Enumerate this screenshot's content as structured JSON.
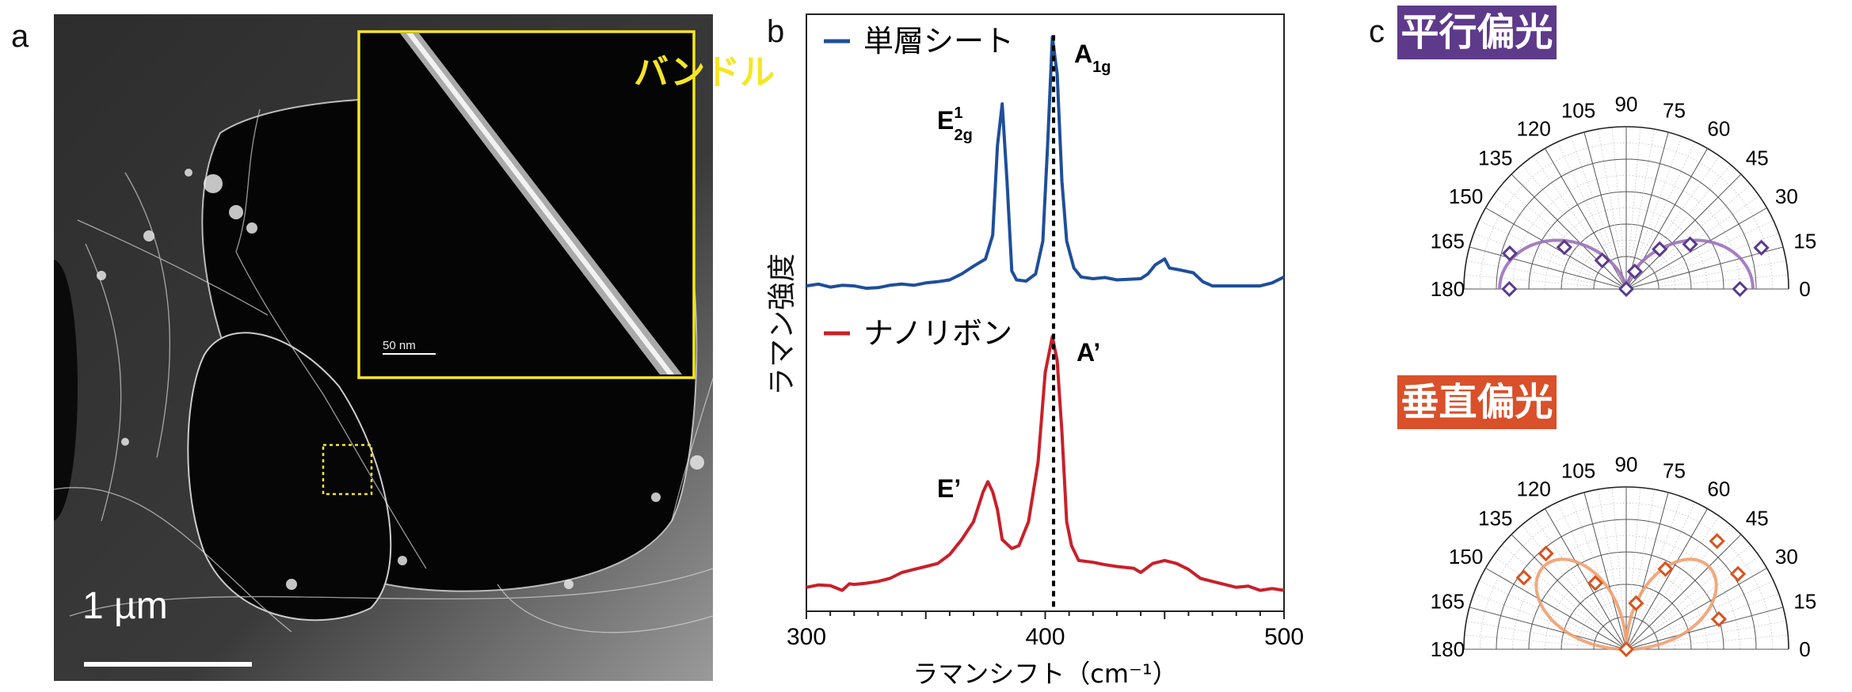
{
  "panel_a": {
    "label": "a",
    "scale_bar": "1 µm",
    "inset_label": "バンドル",
    "inset_scale_bar": "50 nm",
    "inset_border_color": "#f5e625"
  },
  "panel_b": {
    "label": "b"
  },
  "panel_c": {
    "label": "c",
    "parallel_title": "平行偏光",
    "perpendicular_title": "垂直偏光",
    "parallel_color": "#5e3a8a",
    "perpendicular_color": "#d9502a"
  },
  "chart_data": [
    {
      "type": "line",
      "title": "",
      "xlabel": "ラマンシフト（cm⁻¹）",
      "ylabel": "ラマン強度",
      "xlim": [
        300,
        500
      ],
      "ylim": [
        0,
        1
      ],
      "xticks": [
        300,
        400,
        500
      ],
      "grid": false,
      "legend_placement": "top-left (per trace)",
      "reference_line_x": 403.5,
      "series": [
        {
          "name": "単層シート",
          "color": "#1f4e9a",
          "points": [
            [
              300,
              0.545
            ],
            [
              305,
              0.548
            ],
            [
              310,
              0.543
            ],
            [
              315,
              0.546
            ],
            [
              320,
              0.545
            ],
            [
              325,
              0.541
            ],
            [
              330,
              0.542
            ],
            [
              335,
              0.546
            ],
            [
              340,
              0.548
            ],
            [
              345,
              0.546
            ],
            [
              350,
              0.55
            ],
            [
              355,
              0.552
            ],
            [
              360,
              0.555
            ],
            [
              365,
              0.565
            ],
            [
              370,
              0.578
            ],
            [
              375,
              0.59
            ],
            [
              378,
              0.63
            ],
            [
              380,
              0.78
            ],
            [
              382,
              0.85
            ],
            [
              384,
              0.72
            ],
            [
              386,
              0.57
            ],
            [
              388,
              0.555
            ],
            [
              392,
              0.553
            ],
            [
              396,
              0.565
            ],
            [
              399,
              0.62
            ],
            [
              401,
              0.78
            ],
            [
              403,
              0.962
            ],
            [
              405,
              0.9
            ],
            [
              407,
              0.72
            ],
            [
              409,
              0.62
            ],
            [
              412,
              0.575
            ],
            [
              415,
              0.56
            ],
            [
              420,
              0.557
            ],
            [
              425,
              0.559
            ],
            [
              430,
              0.555
            ],
            [
              435,
              0.556
            ],
            [
              440,
              0.557
            ],
            [
              443,
              0.565
            ],
            [
              446,
              0.58
            ],
            [
              450,
              0.59
            ],
            [
              452,
              0.575
            ],
            [
              456,
              0.572
            ],
            [
              462,
              0.567
            ],
            [
              466,
              0.552
            ],
            [
              470,
              0.545
            ],
            [
              480,
              0.545
            ],
            [
              490,
              0.545
            ],
            [
              495,
              0.55
            ],
            [
              500,
              0.56
            ]
          ],
          "peak_labels": [
            {
              "text": "E",
              "sup": "1",
              "sub": "2g",
              "x": 382
            },
            {
              "text": "A",
              "sup": "",
              "sub": "1g",
              "x": 404
            }
          ]
        },
        {
          "name": "ナノリボン",
          "color": "#c8202a",
          "points": [
            [
              300,
              0.04
            ],
            [
              305,
              0.044
            ],
            [
              310,
              0.043
            ],
            [
              315,
              0.035
            ],
            [
              318,
              0.046
            ],
            [
              320,
              0.045
            ],
            [
              325,
              0.047
            ],
            [
              330,
              0.05
            ],
            [
              335,
              0.055
            ],
            [
              340,
              0.065
            ],
            [
              345,
              0.07
            ],
            [
              350,
              0.075
            ],
            [
              355,
              0.08
            ],
            [
              360,
              0.095
            ],
            [
              365,
              0.12
            ],
            [
              370,
              0.15
            ],
            [
              374,
              0.2
            ],
            [
              376,
              0.217
            ],
            [
              378,
              0.2
            ],
            [
              380,
              0.17
            ],
            [
              382,
              0.12
            ],
            [
              386,
              0.105
            ],
            [
              389,
              0.11
            ],
            [
              393,
              0.15
            ],
            [
              397,
              0.25
            ],
            [
              400,
              0.4
            ],
            [
              403,
              0.46
            ],
            [
              405,
              0.42
            ],
            [
              407,
              0.3
            ],
            [
              409,
              0.15
            ],
            [
              411,
              0.11
            ],
            [
              414,
              0.085
            ],
            [
              420,
              0.082
            ],
            [
              425,
              0.078
            ],
            [
              430,
              0.075
            ],
            [
              437,
              0.072
            ],
            [
              440,
              0.065
            ],
            [
              445,
              0.08
            ],
            [
              450,
              0.085
            ],
            [
              455,
              0.08
            ],
            [
              460,
              0.07
            ],
            [
              465,
              0.055
            ],
            [
              470,
              0.05
            ],
            [
              475,
              0.045
            ],
            [
              480,
              0.04
            ],
            [
              485,
              0.042
            ],
            [
              490,
              0.035
            ],
            [
              495,
              0.038
            ],
            [
              500,
              0.035
            ]
          ],
          "peak_labels": [
            {
              "text": "E’",
              "sup": "",
              "sub": "",
              "x": 376
            },
            {
              "text": "A’",
              "sup": "",
              "sub": "",
              "x": 404
            }
          ]
        }
      ]
    },
    {
      "type": "scatter",
      "coordinate": "polar",
      "title": "平行偏光",
      "angle_range_deg": [
        0,
        180
      ],
      "angle_ticks": [
        0,
        15,
        30,
        45,
        60,
        75,
        90,
        105,
        120,
        135,
        150,
        165,
        180
      ],
      "radius_range": [
        0,
        1
      ],
      "marker": "diamond",
      "marker_color": "#5b3a8e",
      "fit_color": "#9b72b8",
      "fit_model": "r = 0.78·cos²θ",
      "fit_amplitude": 0.78,
      "points": [
        [
          0,
          0.7
        ],
        [
          17,
          0.87
        ],
        [
          35,
          0.48
        ],
        [
          50,
          0.32
        ],
        [
          64,
          0.12
        ],
        [
          90,
          0.0
        ],
        [
          130,
          0.23
        ],
        [
          146,
          0.46
        ],
        [
          163,
          0.75
        ],
        [
          180,
          0.72
        ]
      ]
    },
    {
      "type": "scatter",
      "coordinate": "polar",
      "title": "垂直偏光",
      "angle_range_deg": [
        0,
        180
      ],
      "angle_ticks": [
        0,
        15,
        30,
        45,
        60,
        75,
        90,
        105,
        120,
        135,
        150,
        165,
        180
      ],
      "radius_range": [
        0,
        1
      ],
      "marker": "diamond",
      "marker_color": "#d9531e",
      "fit_color": "#f0a070",
      "fit_model": "r = 0.72·|sin2θ|",
      "fit_amplitude": 0.72,
      "points": [
        [
          18,
          0.6
        ],
        [
          34,
          0.83
        ],
        [
          50,
          0.87
        ],
        [
          64,
          0.55
        ],
        [
          78,
          0.29
        ],
        [
          90,
          0.0
        ],
        [
          115,
          0.45
        ],
        [
          130,
          0.77
        ],
        [
          145,
          0.77
        ]
      ]
    }
  ]
}
